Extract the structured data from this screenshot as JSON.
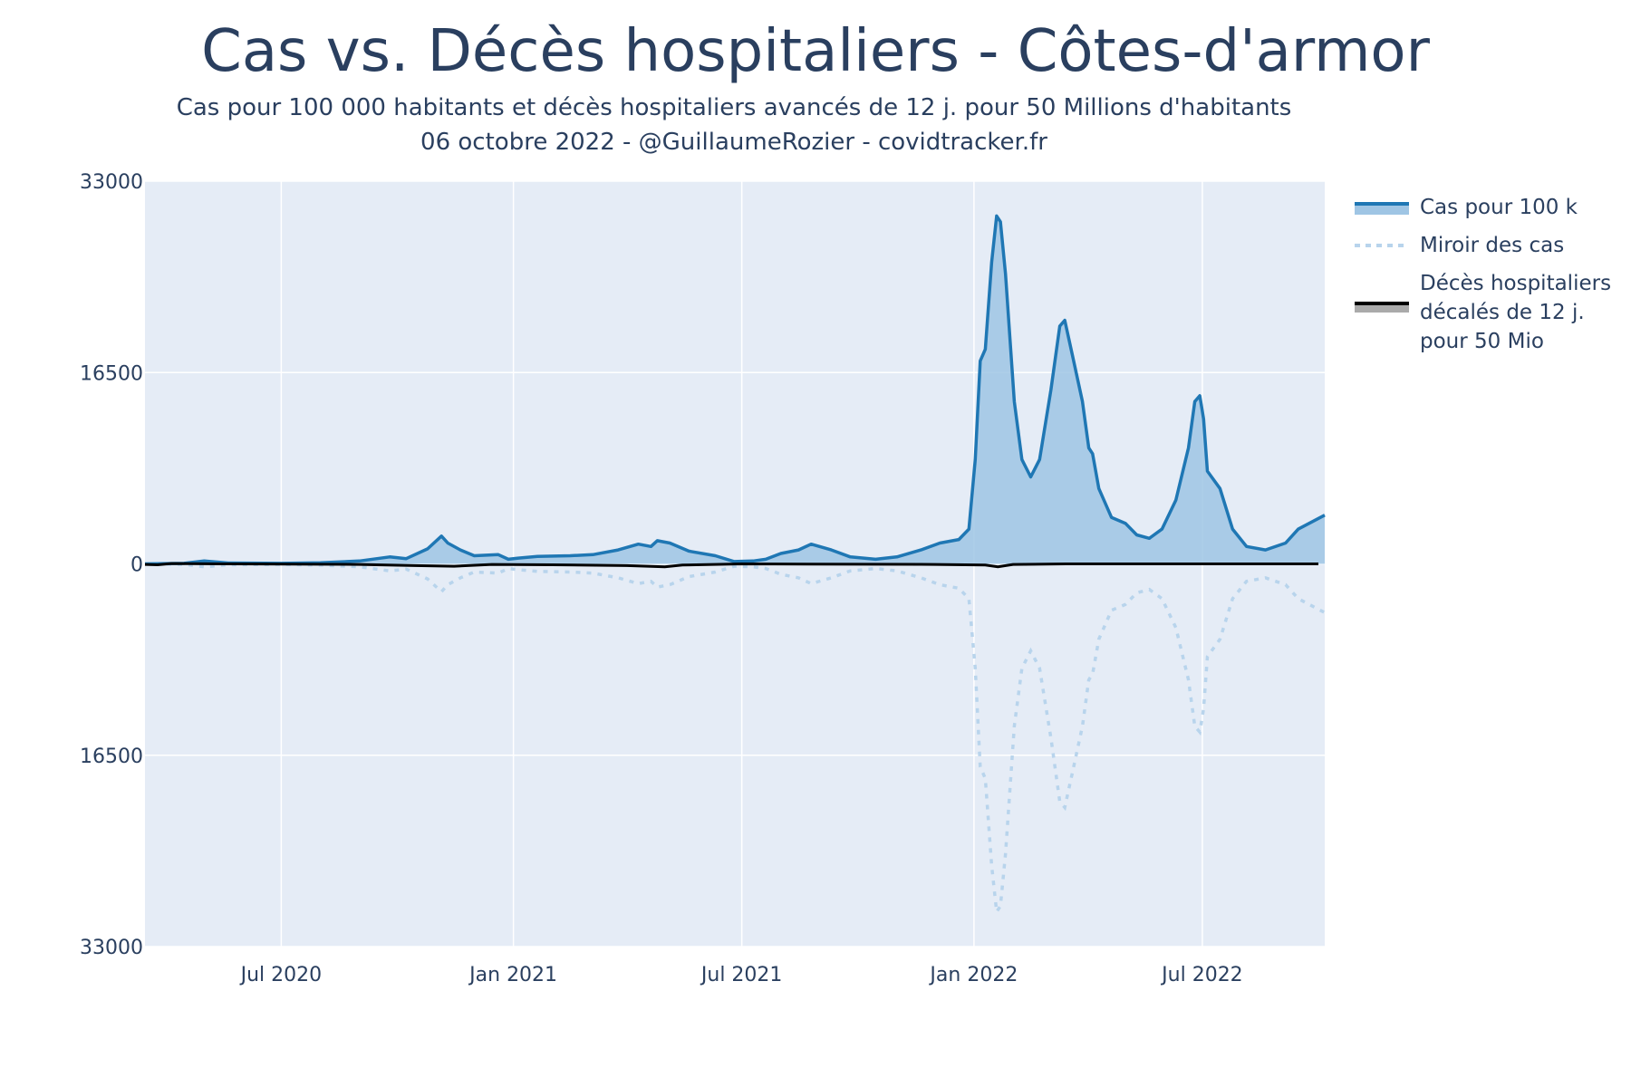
{
  "title": "Cas vs. Décès hospitaliers - Côtes-d'armor",
  "subtitle_line1": "Cas pour 100 000 habitants et décès hospitaliers avancés de 12 j. pour 50 Millions d'habitants",
  "subtitle_line2": "06 octobre 2022 - @GuillaumeRozier - covidtracker.fr",
  "legend": {
    "cases": "Cas pour 100 k",
    "mirror": "Miroir des cas",
    "deaths": "Décès hospitaliers\ndécalés de 12 j.\npour 50 Mio"
  },
  "colors": {
    "plot_bg": "#e5ecf6",
    "grid": "#ffffff",
    "cases_line": "#1f77b4",
    "cases_fill": "#9fc5e4",
    "mirror": "#b8d4ec",
    "deaths": "#000000",
    "deaths_legend_fill": "#aaaaaa"
  },
  "chart_data": {
    "type": "area",
    "x_range": [
      "2020-03-15",
      "2022-10-06"
    ],
    "y_range": [
      -33000,
      33000
    ],
    "y_ticks": [
      33000,
      16500,
      0,
      -16500,
      -33000
    ],
    "y_tick_labels": [
      "33000",
      "16500",
      "0",
      "16500",
      "33000"
    ],
    "x_ticks": [
      "2020-07-01",
      "2021-01-01",
      "2021-07-01",
      "2022-01-01",
      "2022-07-01"
    ],
    "x_tick_labels": [
      "Jul 2020",
      "Jan 2021",
      "Jul 2021",
      "Jan 2022",
      "Jul 2022"
    ],
    "series": [
      {
        "name": "Cas pour 100 k",
        "points": [
          [
            "2020-03-15",
            0
          ],
          [
            "2020-04-15",
            50
          ],
          [
            "2020-05-01",
            250
          ],
          [
            "2020-05-06",
            200
          ],
          [
            "2020-05-20",
            80
          ],
          [
            "2020-07-01",
            50
          ],
          [
            "2020-08-01",
            100
          ],
          [
            "2020-09-01",
            250
          ],
          [
            "2020-09-25",
            600
          ],
          [
            "2020-10-08",
            450
          ],
          [
            "2020-10-25",
            1300
          ],
          [
            "2020-11-05",
            2400
          ],
          [
            "2020-11-10",
            1800
          ],
          [
            "2020-11-20",
            1200
          ],
          [
            "2020-12-01",
            700
          ],
          [
            "2020-12-20",
            800
          ],
          [
            "2020-12-28",
            400
          ],
          [
            "2021-01-05",
            500
          ],
          [
            "2021-01-20",
            650
          ],
          [
            "2021-02-15",
            700
          ],
          [
            "2021-03-05",
            800
          ],
          [
            "2021-03-25",
            1200
          ],
          [
            "2021-04-10",
            1700
          ],
          [
            "2021-04-20",
            1500
          ],
          [
            "2021-04-25",
            2000
          ],
          [
            "2021-05-05",
            1800
          ],
          [
            "2021-05-20",
            1100
          ],
          [
            "2021-06-10",
            700
          ],
          [
            "2021-06-25",
            200
          ],
          [
            "2021-07-10",
            250
          ],
          [
            "2021-07-20",
            400
          ],
          [
            "2021-08-01",
            900
          ],
          [
            "2021-08-15",
            1200
          ],
          [
            "2021-08-25",
            1700
          ],
          [
            "2021-09-10",
            1200
          ],
          [
            "2021-09-25",
            600
          ],
          [
            "2021-10-15",
            400
          ],
          [
            "2021-11-01",
            600
          ],
          [
            "2021-11-20",
            1200
          ],
          [
            "2021-12-05",
            1800
          ],
          [
            "2021-12-20",
            2100
          ],
          [
            "2021-12-28",
            3000
          ],
          [
            "2022-01-02",
            9000
          ],
          [
            "2022-01-06",
            17500
          ],
          [
            "2022-01-10",
            18500
          ],
          [
            "2022-01-15",
            26000
          ],
          [
            "2022-01-19",
            30000
          ],
          [
            "2022-01-22",
            29500
          ],
          [
            "2022-01-26",
            25000
          ],
          [
            "2022-02-02",
            14000
          ],
          [
            "2022-02-08",
            9000
          ],
          [
            "2022-02-15",
            7500
          ],
          [
            "2022-02-22",
            9000
          ],
          [
            "2022-03-03",
            15000
          ],
          [
            "2022-03-10",
            20500
          ],
          [
            "2022-03-14",
            21000
          ],
          [
            "2022-03-20",
            18000
          ],
          [
            "2022-03-28",
            14000
          ],
          [
            "2022-04-02",
            10000
          ],
          [
            "2022-04-05",
            9500
          ],
          [
            "2022-04-10",
            6500
          ],
          [
            "2022-04-20",
            4000
          ],
          [
            "2022-05-01",
            3500
          ],
          [
            "2022-05-10",
            2500
          ],
          [
            "2022-05-20",
            2200
          ],
          [
            "2022-05-30",
            3000
          ],
          [
            "2022-06-10",
            5500
          ],
          [
            "2022-06-20",
            10000
          ],
          [
            "2022-06-25",
            14000
          ],
          [
            "2022-06-29",
            14500
          ],
          [
            "2022-07-02",
            12500
          ],
          [
            "2022-07-05",
            8000
          ],
          [
            "2022-07-15",
            6500
          ],
          [
            "2022-07-25",
            3000
          ],
          [
            "2022-08-05",
            1500
          ],
          [
            "2022-08-20",
            1200
          ],
          [
            "2022-09-05",
            1800
          ],
          [
            "2022-09-15",
            3000
          ],
          [
            "2022-10-06",
            4200
          ]
        ]
      },
      {
        "name": "Miroir des cas",
        "points": [
          [
            "2020-03-15",
            0
          ],
          [
            "2020-04-15",
            -50
          ],
          [
            "2020-05-01",
            -250
          ],
          [
            "2020-05-06",
            -200
          ],
          [
            "2020-05-20",
            -80
          ],
          [
            "2020-07-01",
            -50
          ],
          [
            "2020-08-01",
            -100
          ],
          [
            "2020-09-01",
            -250
          ],
          [
            "2020-09-25",
            -600
          ],
          [
            "2020-10-08",
            -450
          ],
          [
            "2020-10-25",
            -1300
          ],
          [
            "2020-11-05",
            -2400
          ],
          [
            "2020-11-10",
            -1800
          ],
          [
            "2020-11-20",
            -1200
          ],
          [
            "2020-12-01",
            -700
          ],
          [
            "2020-12-20",
            -800
          ],
          [
            "2020-12-28",
            -400
          ],
          [
            "2021-01-05",
            -500
          ],
          [
            "2021-01-20",
            -650
          ],
          [
            "2021-02-15",
            -700
          ],
          [
            "2021-03-05",
            -800
          ],
          [
            "2021-03-25",
            -1200
          ],
          [
            "2021-04-10",
            -1700
          ],
          [
            "2021-04-20",
            -1500
          ],
          [
            "2021-04-25",
            -2000
          ],
          [
            "2021-05-05",
            -1800
          ],
          [
            "2021-05-20",
            -1100
          ],
          [
            "2021-06-10",
            -700
          ],
          [
            "2021-06-25",
            -200
          ],
          [
            "2021-07-10",
            -250
          ],
          [
            "2021-07-20",
            -400
          ],
          [
            "2021-08-01",
            -900
          ],
          [
            "2021-08-15",
            -1200
          ],
          [
            "2021-08-25",
            -1700
          ],
          [
            "2021-09-10",
            -1200
          ],
          [
            "2021-09-25",
            -600
          ],
          [
            "2021-10-15",
            -400
          ],
          [
            "2021-11-01",
            -600
          ],
          [
            "2021-11-20",
            -1200
          ],
          [
            "2021-12-05",
            -1800
          ],
          [
            "2021-12-20",
            -2100
          ],
          [
            "2021-12-28",
            -3000
          ],
          [
            "2022-01-02",
            -9000
          ],
          [
            "2022-01-06",
            -17500
          ],
          [
            "2022-01-10",
            -18500
          ],
          [
            "2022-01-15",
            -26000
          ],
          [
            "2022-01-19",
            -30000
          ],
          [
            "2022-01-22",
            -29500
          ],
          [
            "2022-01-26",
            -25000
          ],
          [
            "2022-02-02",
            -14000
          ],
          [
            "2022-02-08",
            -9000
          ],
          [
            "2022-02-15",
            -7500
          ],
          [
            "2022-02-22",
            -9000
          ],
          [
            "2022-03-03",
            -15000
          ],
          [
            "2022-03-10",
            -20500
          ],
          [
            "2022-03-14",
            -21000
          ],
          [
            "2022-03-20",
            -18000
          ],
          [
            "2022-03-28",
            -14000
          ],
          [
            "2022-04-02",
            -10000
          ],
          [
            "2022-04-05",
            -9500
          ],
          [
            "2022-04-10",
            -6500
          ],
          [
            "2022-04-20",
            -4000
          ],
          [
            "2022-05-01",
            -3500
          ],
          [
            "2022-05-10",
            -2500
          ],
          [
            "2022-05-20",
            -2200
          ],
          [
            "2022-05-30",
            -3000
          ],
          [
            "2022-06-10",
            -5500
          ],
          [
            "2022-06-20",
            -10000
          ],
          [
            "2022-06-25",
            -14000
          ],
          [
            "2022-06-29",
            -14500
          ],
          [
            "2022-07-02",
            -12500
          ],
          [
            "2022-07-05",
            -8000
          ],
          [
            "2022-07-15",
            -6500
          ],
          [
            "2022-07-25",
            -3000
          ],
          [
            "2022-08-05",
            -1500
          ],
          [
            "2022-08-20",
            -1200
          ],
          [
            "2022-09-05",
            -1800
          ],
          [
            "2022-09-15",
            -3000
          ],
          [
            "2022-10-06",
            -4200
          ]
        ]
      },
      {
        "name": "Décès hospitaliers décalés de 12 j. pour 50 Mio",
        "points": [
          [
            "2020-03-15",
            -50
          ],
          [
            "2020-03-25",
            -80
          ],
          [
            "2020-04-05",
            30
          ],
          [
            "2020-05-15",
            0
          ],
          [
            "2020-09-01",
            -50
          ],
          [
            "2020-10-15",
            -150
          ],
          [
            "2020-11-15",
            -200
          ],
          [
            "2020-12-15",
            -50
          ],
          [
            "2021-02-01",
            -80
          ],
          [
            "2021-04-01",
            -150
          ],
          [
            "2021-05-01",
            -250
          ],
          [
            "2021-05-15",
            -100
          ],
          [
            "2021-07-01",
            0
          ],
          [
            "2021-12-01",
            -50
          ],
          [
            "2022-01-10",
            -100
          ],
          [
            "2022-01-20",
            -250
          ],
          [
            "2022-02-01",
            -50
          ],
          [
            "2022-03-15",
            0
          ],
          [
            "2022-10-01",
            0
          ]
        ]
      }
    ]
  }
}
